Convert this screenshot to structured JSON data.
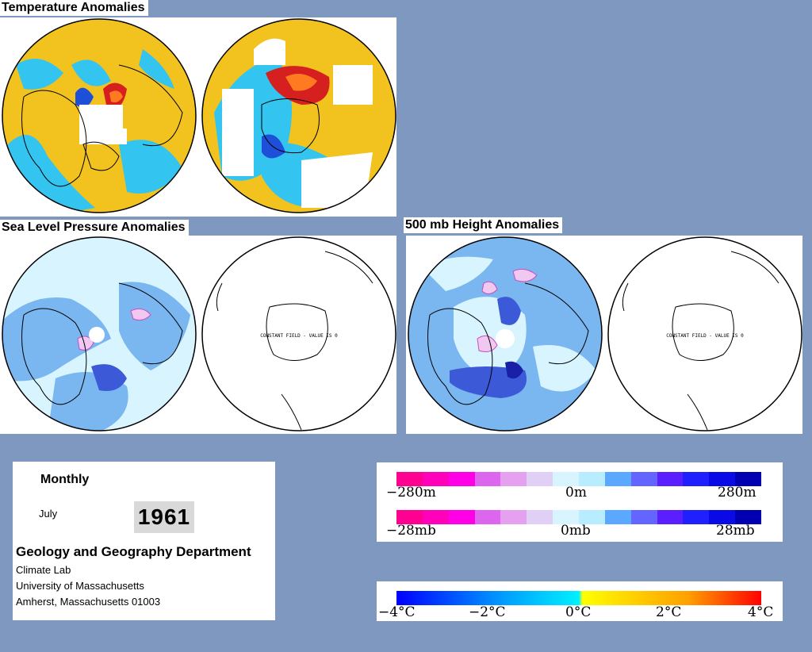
{
  "titles": {
    "temperature": "Temperature Anomalies",
    "slp": "Sea Level Pressure Anomalies",
    "height": "500 mb Height Anomalies"
  },
  "constant_field_label": "CONSTANT FIELD - VALUE IS 0",
  "info": {
    "period": "Monthly",
    "month": "July",
    "year": "1961",
    "department": "Geology and Geography Department",
    "address_lines": [
      "Climate Lab",
      "University of Massachusetts",
      "Amherst, Massachusetts 01003"
    ]
  },
  "legends": {
    "height": {
      "left": "−280m",
      "mid": "0m",
      "right": "280m"
    },
    "pressure": {
      "left": "−28mb",
      "mid": "0mb",
      "right": "28mb"
    },
    "temperature": {
      "t1": "−4°C",
      "t2": "−2°C",
      "t3": "0°C",
      "t4": "2°C",
      "t5": "4°C"
    }
  },
  "colors": {
    "background": "#7f98bf",
    "anomaly_scale": [
      "#ff0090",
      "#ff00bb",
      "#ff00e6",
      "#dd66ee",
      "#e6a0f0",
      "#e0d0f5",
      "#d8f5ff",
      "#b8ecff",
      "#5aa8ff",
      "#6464ff",
      "#5a1eff",
      "#2020ff",
      "#0a0ae6",
      "#0000b0"
    ],
    "temperature_scale": [
      "#0000ff",
      "#0050ff",
      "#00a0ff",
      "#00d0ff",
      "#00f0ff",
      "#ffff00",
      "#ffd000",
      "#ffa000",
      "#ff6000",
      "#ff0000"
    ],
    "ocean_warm": "#f2c21f",
    "cool": "#33c5ef",
    "light_blue": "#d8f4ff",
    "mid_blue": "#7ab6ef"
  }
}
